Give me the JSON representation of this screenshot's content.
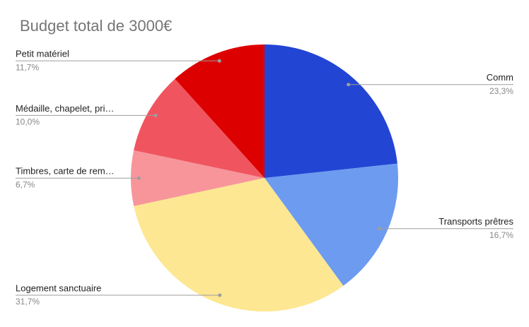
{
  "chart_data": {
    "type": "pie",
    "title": "Budget total de 3000€",
    "categories": [
      "Comm",
      "Transports prêtres",
      "Logement sanctuaire",
      "Timbres, carte de rem…",
      "Médaille, chapelet, pri…",
      "Petit matériel"
    ],
    "values": [
      23.3,
      16.7,
      31.7,
      6.7,
      10.0,
      11.7
    ],
    "value_labels": [
      "23,3%",
      "16,7%",
      "31,7%",
      "6,7%",
      "10,0%",
      "11,7%"
    ],
    "colors": [
      "#2345d4",
      "#6d9bef",
      "#fde792",
      "#f7959b",
      "#f0555f",
      "#dd0000"
    ]
  }
}
